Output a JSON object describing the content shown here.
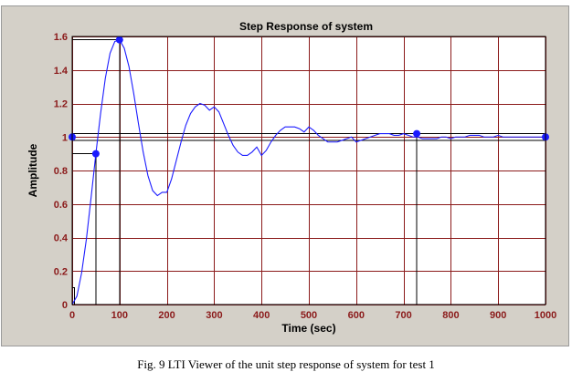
{
  "caption": "Fig. 9  LTI Viewer of the unit step response of system for test 1",
  "chart_data": {
    "type": "line",
    "title": "Step Response of system",
    "xlabel": "Time (sec)",
    "ylabel": "Amplitude",
    "xlim": [
      0,
      1000
    ],
    "ylim": [
      0,
      1.6
    ],
    "xticks": [
      "0",
      "100",
      "200",
      "300",
      "400",
      "500",
      "600",
      "700",
      "800",
      "900",
      "1000"
    ],
    "yticks": [
      "0",
      "0.2",
      "0.4",
      "0.6",
      "0.8",
      "1",
      "1.2",
      "1.4",
      "1.6"
    ],
    "grid": true,
    "series": [
      {
        "x": [
          0,
          10,
          20,
          30,
          40,
          50,
          60,
          70,
          80,
          90,
          100,
          110,
          120,
          130,
          140,
          150,
          160,
          170,
          180,
          190,
          200,
          210,
          220,
          230,
          240,
          250,
          260,
          270,
          280,
          290,
          300,
          310,
          320,
          330,
          340,
          350,
          360,
          370,
          380,
          390,
          400,
          410,
          420,
          430,
          440,
          450,
          460,
          470,
          480,
          490,
          500,
          510,
          520,
          530,
          540,
          550,
          560,
          570,
          580,
          590,
          600,
          610,
          620,
          630,
          640,
          650,
          660,
          670,
          680,
          690,
          700,
          710,
          720,
          730,
          740,
          750,
          760,
          770,
          780,
          790,
          800,
          810,
          820,
          830,
          840,
          850,
          860,
          870,
          880,
          890,
          900,
          910,
          920,
          930,
          940,
          950,
          960,
          970,
          980,
          990,
          1000
        ],
        "y": [
          0,
          0.05,
          0.19,
          0.39,
          0.64,
          0.9,
          1.14,
          1.35,
          1.5,
          1.57,
          1.58,
          1.53,
          1.42,
          1.26,
          1.08,
          0.91,
          0.77,
          0.68,
          0.65,
          0.67,
          0.67,
          0.75,
          0.86,
          0.97,
          1.07,
          1.14,
          1.18,
          1.2,
          1.19,
          1.16,
          1.18,
          1.15,
          1.08,
          1.01,
          0.95,
          0.91,
          0.89,
          0.89,
          0.91,
          0.94,
          0.89,
          0.92,
          0.97,
          1.01,
          1.04,
          1.06,
          1.06,
          1.06,
          1.05,
          1.03,
          1.06,
          1.04,
          1.01,
          0.99,
          0.97,
          0.97,
          0.97,
          0.98,
          0.99,
          1.0,
          0.97,
          0.98,
          0.99,
          1.0,
          1.01,
          1.02,
          1.02,
          1.02,
          1.01,
          1.01,
          1.02,
          1.01,
          1.0,
          1.0,
          0.99,
          0.99,
          0.99,
          0.99,
          1.0,
          1.0,
          0.99,
          1.0,
          1.0,
          1.0,
          1.01,
          1.01,
          1.01,
          1.0,
          1.0,
          1.0,
          1.01,
          1.0,
          1.0,
          1.0,
          1.0,
          1.0,
          1.0,
          1.0,
          1.0,
          1.0,
          1.0
        ]
      }
    ],
    "characteristics": [
      {
        "kind": "steady-state",
        "x": 0,
        "y": 1.0
      },
      {
        "kind": "rise-time",
        "x": 50,
        "y": 0.9
      },
      {
        "kind": "peak",
        "x": 100,
        "y": 1.58
      },
      {
        "kind": "settling-time",
        "x": 728,
        "y": 1.02
      },
      {
        "kind": "final-value",
        "x": 1000,
        "y": 1.0
      }
    ],
    "markers": {
      "steady_band": [
        0.98,
        1.02
      ],
      "rise_start": {
        "x": 5,
        "y": 0.1
      },
      "rise_end": {
        "x": 50,
        "y": 0.9
      },
      "peak": {
        "x": 100,
        "y": 1.58
      },
      "settling": {
        "x": 728,
        "y": 1.02
      }
    },
    "colors": {
      "grid": "#8b1a1a",
      "line": "#1c1cff",
      "markers": "#1a1aff",
      "panel": "#d4d0c8"
    }
  }
}
